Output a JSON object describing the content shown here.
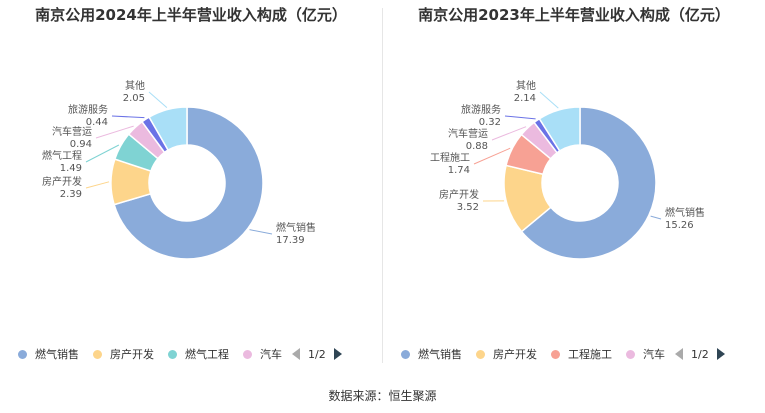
{
  "source": "数据来源：恒生聚源",
  "chart_data": [
    {
      "type": "pie",
      "title": "南京公用2024年上半年营业收入构成（亿元）",
      "slices": [
        {
          "name": "燃气销售",
          "value": 17.39,
          "value_text": "17.39",
          "color": "#8aabda"
        },
        {
          "name": "房产开发",
          "value": 2.39,
          "value_text": "2.39",
          "color": "#fdd58b"
        },
        {
          "name": "燃气工程",
          "value": 1.49,
          "value_text": "1.49",
          "color": "#7fd3d3"
        },
        {
          "name": "汽车营运",
          "value": 0.94,
          "value_text": "0.94",
          "color": "#ebbadf"
        },
        {
          "name": "旅游服务",
          "value": 0.44,
          "value_text": "0.44",
          "color": "#6a72e6"
        },
        {
          "name": "其他",
          "value": 2.05,
          "value_text": "2.05",
          "color": "#a9dff7"
        }
      ],
      "legend": {
        "visible": [
          "燃气销售",
          "房产开发",
          "燃气工程",
          "汽车"
        ],
        "page": "1/2",
        "placement": "bottom"
      }
    },
    {
      "type": "pie",
      "title": "南京公用2023年上半年营业收入构成（亿元）",
      "slices": [
        {
          "name": "燃气销售",
          "value": 15.26,
          "value_text": "15.26",
          "color": "#8aabda"
        },
        {
          "name": "房产开发",
          "value": 3.52,
          "value_text": "3.52",
          "color": "#fdd58b"
        },
        {
          "name": "工程施工",
          "value": 1.74,
          "value_text": "1.74",
          "color": "#f7a194"
        },
        {
          "name": "汽车营运",
          "value": 0.88,
          "value_text": "0.88",
          "color": "#ebbadf"
        },
        {
          "name": "旅游服务",
          "value": 0.32,
          "value_text": "0.32",
          "color": "#6a72e6"
        },
        {
          "name": "其他",
          "value": 2.14,
          "value_text": "2.14",
          "color": "#a9dff7"
        }
      ],
      "legend": {
        "visible": [
          "燃气销售",
          "房产开发",
          "工程施工",
          "汽车"
        ],
        "page": "1/2",
        "placement": "bottom"
      }
    }
  ]
}
